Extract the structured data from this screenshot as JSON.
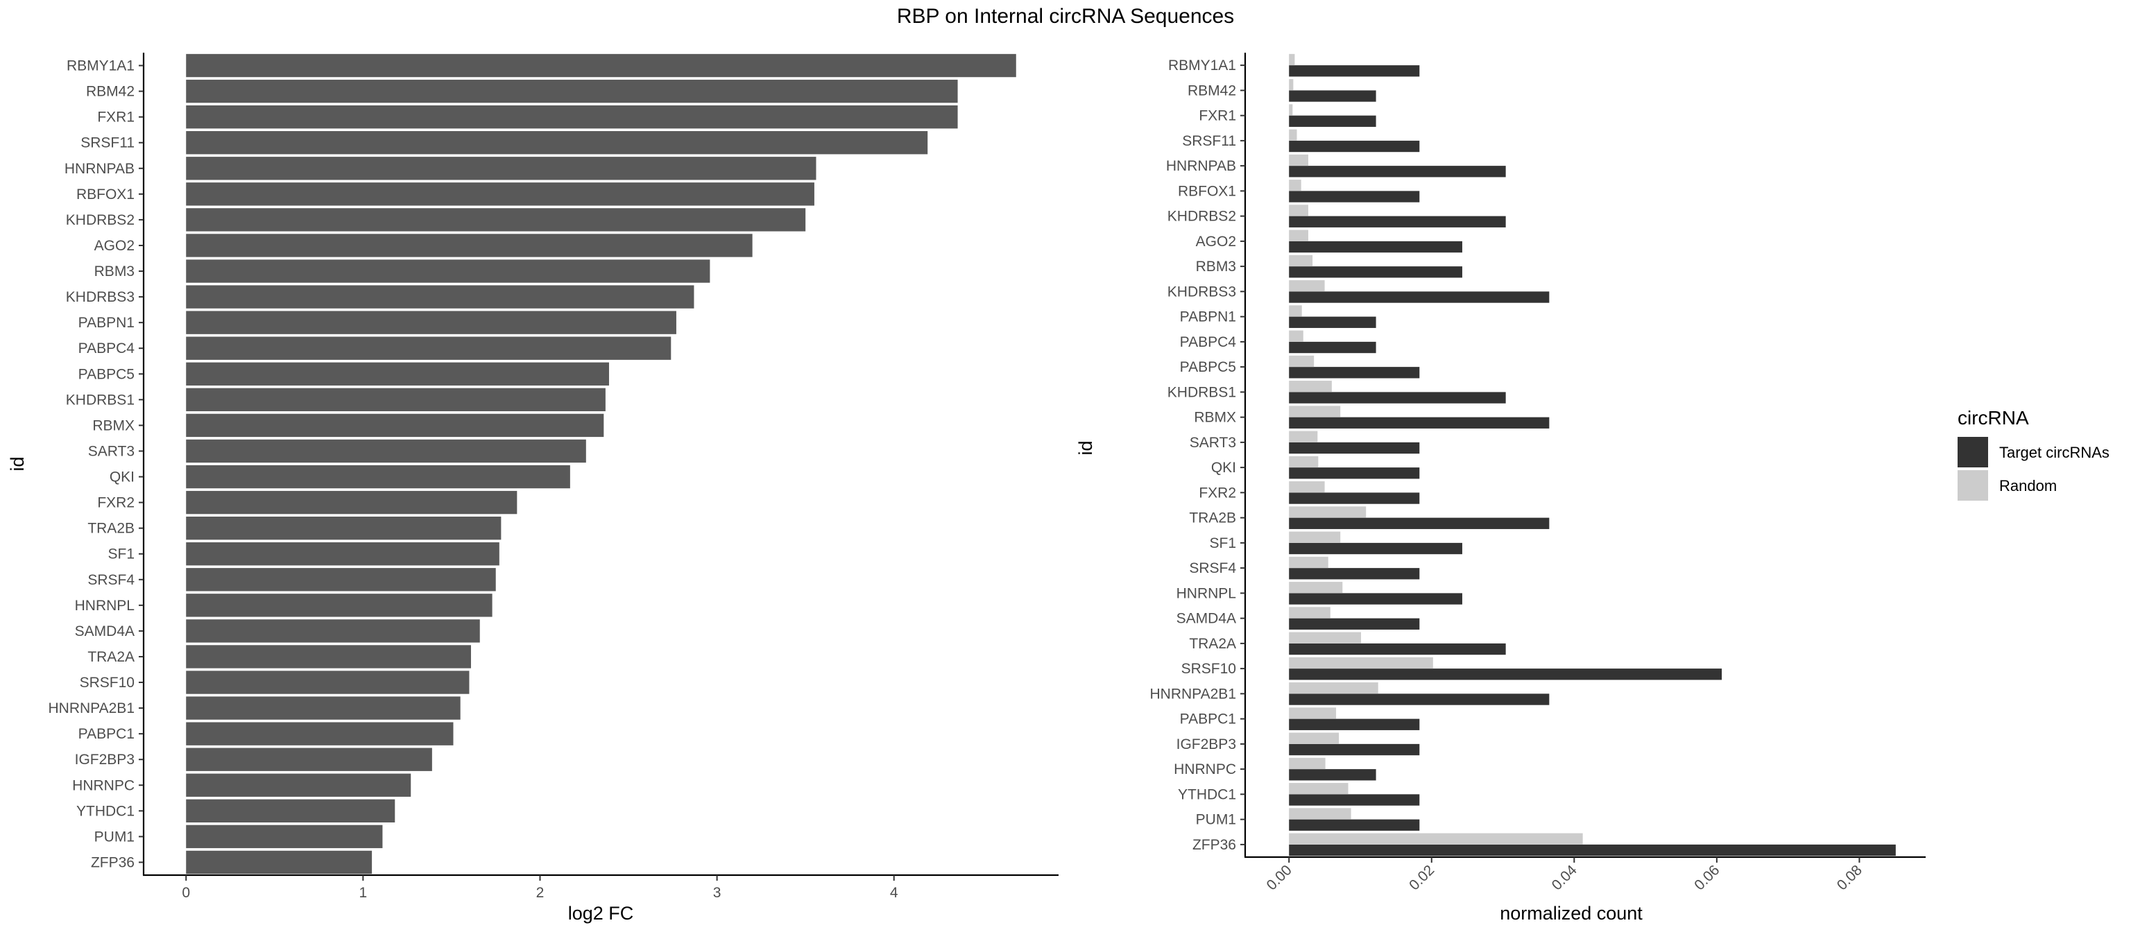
{
  "title": "RBP on Internal circRNA Sequences",
  "chart_data": [
    {
      "type": "bar",
      "orientation": "horizontal",
      "xlabel": "log2 FC",
      "ylabel": "id",
      "xlim": [
        -0.24,
        4.93
      ],
      "xticks": [
        0,
        1,
        2,
        3,
        4
      ],
      "categories": [
        "RBMY1A1",
        "RBM42",
        "FXR1",
        "SRSF11",
        "HNRNPAB",
        "RBFOX1",
        "KHDRBS2",
        "AGO2",
        "RBM3",
        "KHDRBS3",
        "PABPN1",
        "PABPC4",
        "PABPC5",
        "KHDRBS1",
        "RBMX",
        "SART3",
        "QKI",
        "FXR2",
        "TRA2B",
        "SF1",
        "SRSF4",
        "HNRNPL",
        "SAMD4A",
        "TRA2A",
        "SRSF10",
        "HNRNPA2B1",
        "PABPC1",
        "IGF2BP3",
        "HNRNPC",
        "YTHDC1",
        "PUM1",
        "ZFP36"
      ],
      "values": [
        4.69,
        4.36,
        4.36,
        4.19,
        3.56,
        3.55,
        3.5,
        3.2,
        2.96,
        2.87,
        2.77,
        2.74,
        2.39,
        2.37,
        2.36,
        2.26,
        2.17,
        1.87,
        1.78,
        1.77,
        1.75,
        1.73,
        1.66,
        1.61,
        1.6,
        1.55,
        1.51,
        1.39,
        1.27,
        1.18,
        1.11,
        1.05
      ],
      "color": "#595959",
      "grid": false
    },
    {
      "type": "bar",
      "orientation": "horizontal",
      "xlabel": "normalized count",
      "ylabel": "id",
      "xlim": [
        -0.00615,
        0.0893
      ],
      "xticks": [
        0.0,
        0.02,
        0.04,
        0.06,
        0.08
      ],
      "xtick_labels": [
        "0.00",
        "0.02",
        "0.04",
        "0.06",
        "0.08"
      ],
      "categories": [
        "RBMY1A1",
        "RBM42",
        "FXR1",
        "SRSF11",
        "HNRNPAB",
        "RBFOX1",
        "KHDRBS2",
        "AGO2",
        "RBM3",
        "KHDRBS3",
        "PABPN1",
        "PABPC4",
        "PABPC5",
        "KHDRBS1",
        "RBMX",
        "SART3",
        "QKI",
        "FXR2",
        "TRA2B",
        "SF1",
        "SRSF4",
        "HNRNPL",
        "SAMD4A",
        "TRA2A",
        "SRSF10",
        "HNRNPA2B1",
        "PABPC1",
        "IGF2BP3",
        "HNRNPC",
        "YTHDC1",
        "PUM1",
        "ZFP36"
      ],
      "series": [
        {
          "name": "Target circRNAs",
          "color": "#333333",
          "values": [
            0.0183,
            0.0122,
            0.0122,
            0.0183,
            0.0304,
            0.0183,
            0.0304,
            0.0243,
            0.0243,
            0.0365,
            0.0122,
            0.0122,
            0.0183,
            0.0304,
            0.0365,
            0.0183,
            0.0183,
            0.0183,
            0.0365,
            0.0243,
            0.0183,
            0.0243,
            0.0183,
            0.0304,
            0.0607,
            0.0365,
            0.0183,
            0.0183,
            0.0122,
            0.0183,
            0.0183,
            0.0851
          ]
        },
        {
          "name": "Random",
          "color": "#cccccc",
          "values": [
            0.0008,
            0.0006,
            0.0005,
            0.0011,
            0.0027,
            0.0017,
            0.0027,
            0.0027,
            0.0033,
            0.005,
            0.0018,
            0.002,
            0.0035,
            0.006,
            0.0072,
            0.004,
            0.0041,
            0.005,
            0.0108,
            0.0072,
            0.0055,
            0.0075,
            0.0058,
            0.0101,
            0.0202,
            0.0125,
            0.0066,
            0.007,
            0.0051,
            0.0083,
            0.0087,
            0.0412
          ]
        }
      ],
      "legend_title": "circRNA",
      "legend_position": "right",
      "grid": false
    }
  ]
}
